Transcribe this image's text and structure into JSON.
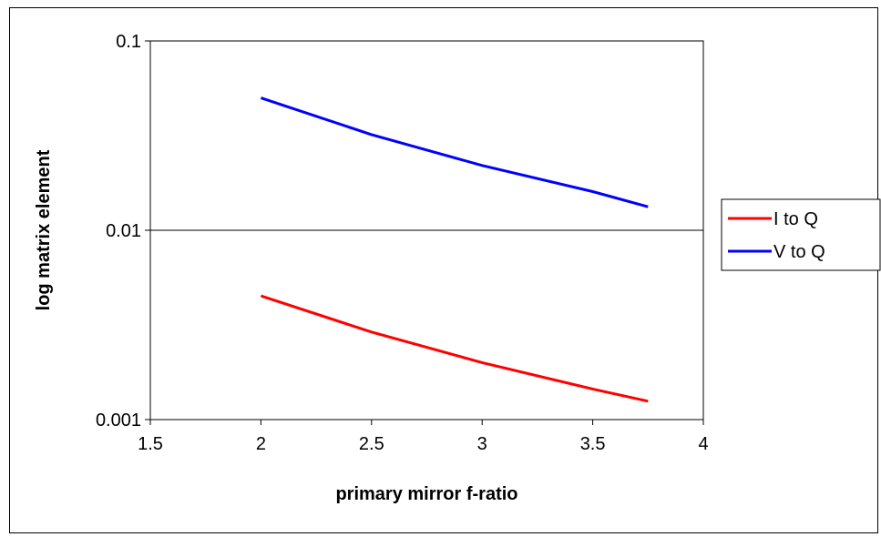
{
  "chart_data": {
    "type": "line",
    "title": "",
    "xlabel": "primary mirror f-ratio",
    "ylabel": "log matrix element",
    "xlim": [
      1.5,
      4
    ],
    "ylim": [
      0.001,
      0.1
    ],
    "yscale": "log",
    "x_ticks": [
      "1.5",
      "2",
      "2.5",
      "3",
      "3.5",
      "4"
    ],
    "y_ticks": [
      "0.1",
      "0.01",
      "0.001"
    ],
    "grid": "horizontal major gridlines only",
    "legend_position": "right",
    "x": [
      2,
      2.5,
      3,
      3.5,
      3.75
    ],
    "series": [
      {
        "name": "I to Q",
        "color": "#ff0000",
        "values": [
          0.0045,
          0.0029,
          0.002,
          0.00145,
          0.00125
        ]
      },
      {
        "name": "V to Q",
        "color": "#0000ff",
        "values": [
          0.05,
          0.032,
          0.022,
          0.016,
          0.0133
        ]
      }
    ]
  }
}
